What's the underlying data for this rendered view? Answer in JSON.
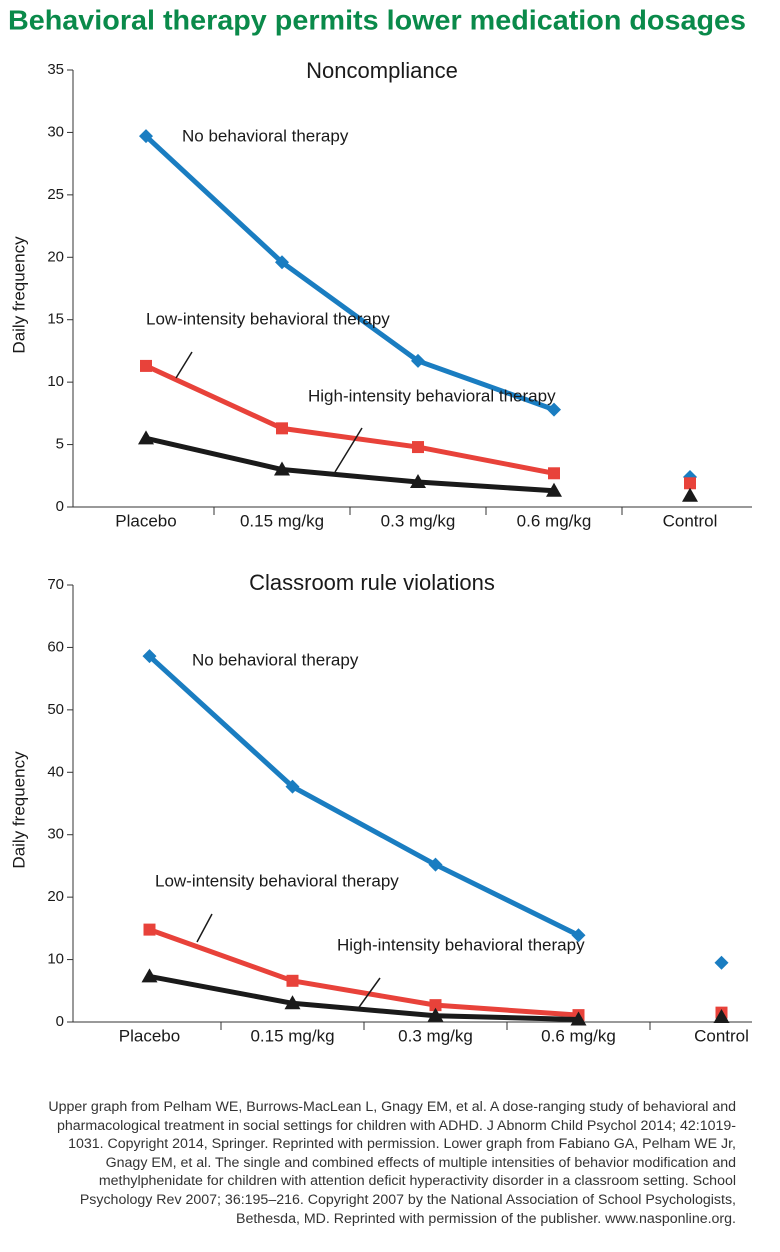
{
  "title": "Behavioral therapy permits lower medication dosages",
  "chart_data": [
    {
      "type": "line",
      "title": "Noncompliance",
      "ylabel": "Daily frequency",
      "categories": [
        "Placebo",
        "0.15 mg/kg",
        "0.3 mg/kg",
        "0.6 mg/kg",
        "Control"
      ],
      "ylim": [
        0,
        35
      ],
      "yticks": [
        0,
        5,
        10,
        15,
        20,
        25,
        30,
        35
      ],
      "series": [
        {
          "name": "No behavioral therapy",
          "color": "#1a7dc1",
          "marker": "diamond",
          "values": [
            29.7,
            19.6,
            11.7,
            7.8,
            2.4
          ]
        },
        {
          "name": "Low-intensity behavioral therapy",
          "color": "#e8423a",
          "marker": "square",
          "values": [
            11.3,
            6.3,
            4.8,
            2.7,
            1.9
          ]
        },
        {
          "name": "High-intensity behavioral therapy",
          "color": "#1a1a1a",
          "marker": "triangle",
          "values": [
            5.5,
            3.0,
            2.0,
            1.3,
            0.9
          ]
        }
      ]
    },
    {
      "type": "line",
      "title": "Classroom rule violations",
      "ylabel": "Daily frequency",
      "categories": [
        "Placebo",
        "0.15 mg/kg",
        "0.3 mg/kg",
        "0.6 mg/kg",
        "Control"
      ],
      "ylim": [
        0,
        70
      ],
      "yticks": [
        0,
        10,
        20,
        30,
        40,
        50,
        60,
        70
      ],
      "series": [
        {
          "name": "No behavioral therapy",
          "color": "#1a7dc1",
          "marker": "diamond",
          "values": [
            58.6,
            37.7,
            25.2,
            13.9,
            9.5
          ]
        },
        {
          "name": "Low-intensity behavioral therapy",
          "color": "#e8423a",
          "marker": "square",
          "values": [
            14.8,
            6.6,
            2.7,
            1.1,
            1.5
          ]
        },
        {
          "name": "High-intensity behavioral therapy",
          "color": "#1a1a1a",
          "marker": "triangle",
          "values": [
            7.3,
            3.0,
            1.0,
            0.4,
            0.8
          ]
        }
      ]
    }
  ],
  "source": "Upper graph from Pelham WE, Burrows-MacLean L, Gnagy EM, et al. A dose-ranging study of behavioral and pharmacological treatment in social settings for children with ADHD. J Abnorm Child Psychol 2014; 42:1019-1031. Copyright 2014, Springer. Reprinted with permission. Lower graph from Fabiano GA, Pelham WE Jr, Gnagy EM, et al. The single and combined effects of multiple intensities of behavior modification and methylphenidate for children with attention deficit hyperactivity disorder in a classroom setting. School Psychology Rev 2007; 36:195–216. Copyright 2007 by the National Association of School Psychologists, Bethesda, MD. Reprinted with permission of the publisher. www.nasponline.org."
}
